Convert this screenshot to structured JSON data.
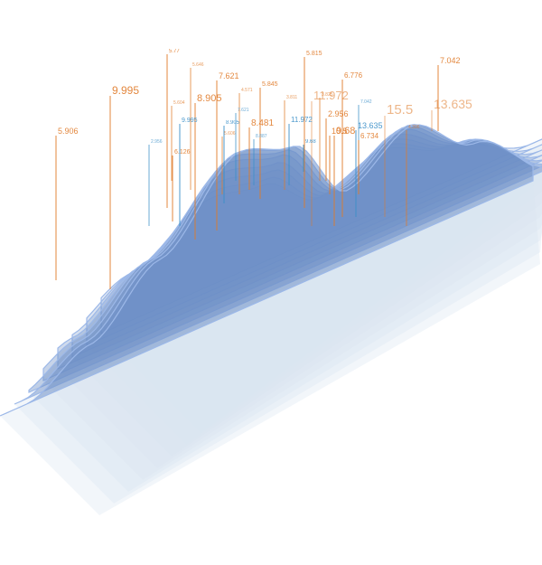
{
  "chart_data": {
    "type": "area",
    "title": "",
    "xlabel": "",
    "ylabel": "",
    "grid": false,
    "legend": "none",
    "colors": {
      "fill": "#6d8fc6",
      "stroke": "#9cb8e8",
      "base": "#dbe4f1",
      "annotation_orange": "#e07b2a",
      "annotation_blue": "#3a8fc8"
    },
    "series_count": 8,
    "ridge_profile": [
      {
        "t": 0.0,
        "h": 0
      },
      {
        "t": 0.12,
        "h": 35
      },
      {
        "t": 0.25,
        "h": 95
      },
      {
        "t": 0.4,
        "h": 175
      },
      {
        "t": 0.5,
        "h": 155
      },
      {
        "t": 0.6,
        "h": 80
      },
      {
        "t": 0.72,
        "h": 120
      },
      {
        "t": 0.84,
        "h": 70
      },
      {
        "t": 1.0,
        "h": 0
      }
    ],
    "annotations": [
      {
        "label": "5.906",
        "color": "orange",
        "size": 9
      },
      {
        "label": "9.995",
        "color": "orange",
        "size": 12
      },
      {
        "label": "5.77",
        "color": "orange",
        "size": 6
      },
      {
        "label": "5.646",
        "color": "orange",
        "size": 5
      },
      {
        "label": "5.604",
        "color": "orange",
        "size": 5
      },
      {
        "label": "8.905",
        "color": "orange",
        "size": 11
      },
      {
        "label": "9.995",
        "color": "blue",
        "size": 7
      },
      {
        "label": "6.126",
        "color": "orange",
        "size": 7
      },
      {
        "label": "2.956",
        "color": "blue",
        "size": 5
      },
      {
        "label": "7.621",
        "color": "orange",
        "size": 9
      },
      {
        "label": "4.571",
        "color": "orange",
        "size": 5
      },
      {
        "label": "8.905",
        "color": "blue",
        "size": 6
      },
      {
        "label": "7.621",
        "color": "blue",
        "size": 5
      },
      {
        "label": "5.606",
        "color": "orange",
        "size": 5
      },
      {
        "label": "5.845",
        "color": "orange",
        "size": 7
      },
      {
        "label": "8.481",
        "color": "orange",
        "size": 10
      },
      {
        "label": "8.887",
        "color": "blue",
        "size": 5
      },
      {
        "label": "5.815",
        "color": "orange",
        "size": 7
      },
      {
        "label": "3.825",
        "color": "orange",
        "size": 5
      },
      {
        "label": "3.811",
        "color": "orange",
        "size": 5
      },
      {
        "label": "11.972",
        "color": "blue",
        "size": 8
      },
      {
        "label": "11.972",
        "color": "orange",
        "size": 13
      },
      {
        "label": "6.776",
        "color": "orange",
        "size": 8
      },
      {
        "label": "9.68",
        "color": "blue",
        "size": 6
      },
      {
        "label": "9.68",
        "color": "orange",
        "size": 11
      },
      {
        "label": "2.956",
        "color": "orange",
        "size": 9
      },
      {
        "label": "10.5",
        "color": "orange",
        "size": 9
      },
      {
        "label": "7.042",
        "color": "blue",
        "size": 5
      },
      {
        "label": "13.635",
        "color": "blue",
        "size": 9
      },
      {
        "label": "6.734",
        "color": "orange",
        "size": 8
      },
      {
        "label": "15.5",
        "color": "orange",
        "size": 15
      },
      {
        "label": "4.396",
        "color": "orange",
        "size": 5
      },
      {
        "label": "7.042",
        "color": "orange",
        "size": 9
      },
      {
        "label": "13.635",
        "color": "orange",
        "size": 14
      }
    ]
  }
}
